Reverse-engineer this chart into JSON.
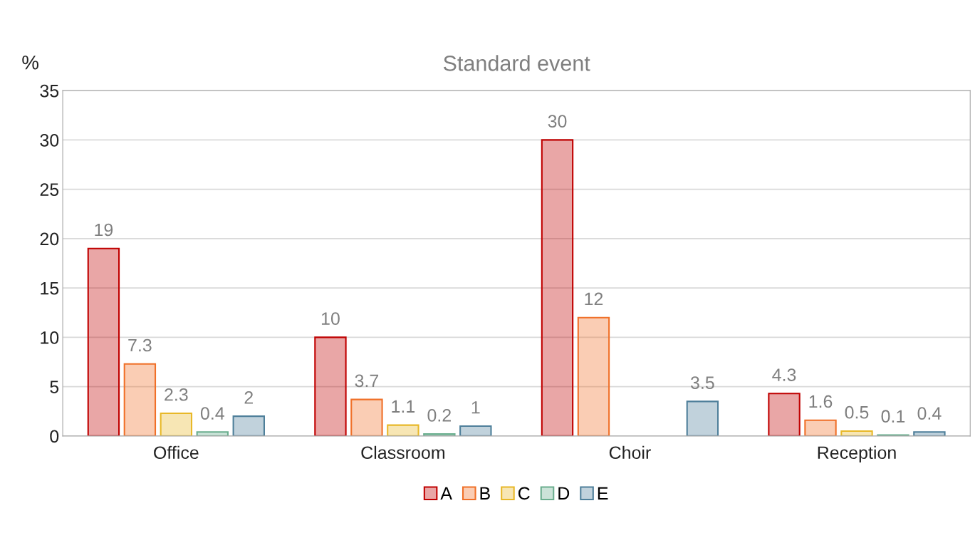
{
  "chart_data": {
    "type": "bar",
    "title": "Standard event",
    "ylabel": "%",
    "categories": [
      "Office",
      "Classroom",
      "Choir",
      "Reception"
    ],
    "series": [
      {
        "name": "A",
        "color": "#c00000",
        "values": [
          19,
          10,
          30,
          4.3
        ]
      },
      {
        "name": "B",
        "color": "#f07028",
        "values": [
          7.3,
          3.7,
          12,
          1.6
        ]
      },
      {
        "name": "C",
        "color": "#e8b828",
        "values": [
          2.3,
          1.1,
          null,
          0.5
        ]
      },
      {
        "name": "D",
        "color": "#6aae8e",
        "values": [
          0.4,
          0.2,
          null,
          0.1
        ]
      },
      {
        "name": "E",
        "color": "#4e7f9a",
        "values": [
          2,
          1,
          3.5,
          0.4
        ]
      }
    ],
    "ylim": [
      0,
      35
    ],
    "yticks": [
      0,
      5,
      10,
      15,
      20,
      25,
      30,
      35
    ],
    "grid": "y",
    "legend": "bottom",
    "data_labels": true
  }
}
